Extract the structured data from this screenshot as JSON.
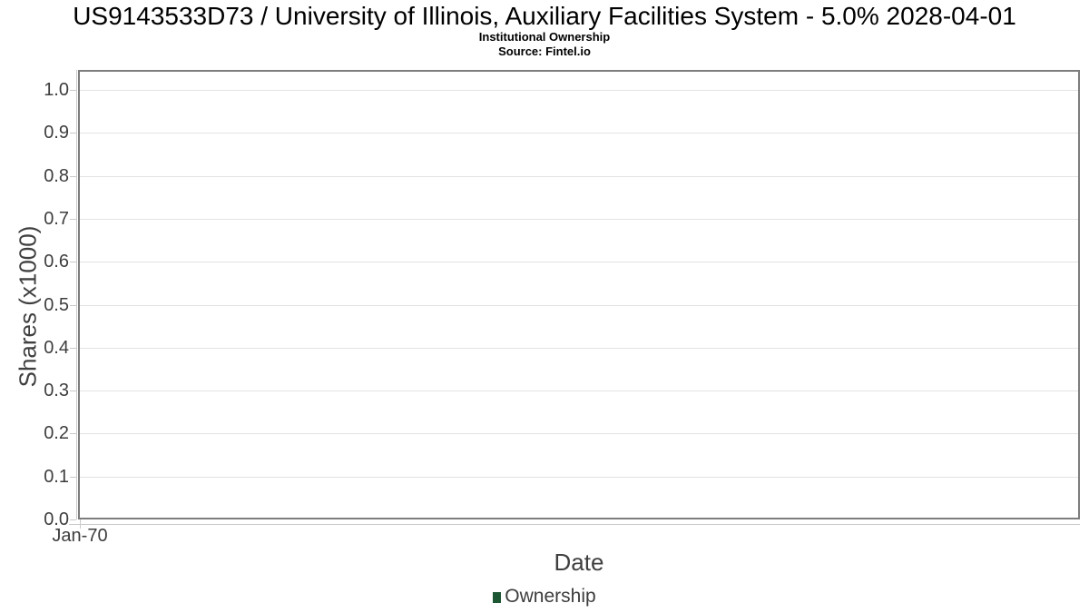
{
  "header": {
    "title": "US9143533D73 / University of Illinois, Auxiliary Facilities System - 5.0% 2028-04-01",
    "subtitle": "Institutional Ownership",
    "source": "Source: Fintel.io"
  },
  "chart_data": {
    "type": "line",
    "title": "US9143533D73 / University of Illinois, Auxiliary Facilities System - 5.0% 2028-04-01",
    "subtitle": "Institutional Ownership",
    "source": "Source: Fintel.io",
    "xlabel": "Date",
    "ylabel": "Shares (x1000)",
    "ylim": [
      0.0,
      1.0
    ],
    "yticks": [
      0.0,
      0.1,
      0.2,
      0.3,
      0.4,
      0.5,
      0.6,
      0.7,
      0.8,
      0.9,
      1.0
    ],
    "ytick_labels": [
      "0.0",
      "0.1",
      "0.2",
      "0.3",
      "0.4",
      "0.5",
      "0.6",
      "0.7",
      "0.8",
      "0.9",
      "1.0"
    ],
    "xtick_labels": [
      "Jan-70"
    ],
    "grid": true,
    "legend_position": "bottom-center",
    "series": [
      {
        "name": "Ownership",
        "color": "#1d5632",
        "x": [],
        "values": []
      }
    ]
  },
  "colors": {
    "title_text": "#000000",
    "axis_text": "#3d3d3d",
    "grid_line": "#e3e3e3",
    "plot_border": "#7d7d7d",
    "axis_line": "#c9c9c9",
    "legend_marker": "#1d5632",
    "background": "#ffffff"
  }
}
